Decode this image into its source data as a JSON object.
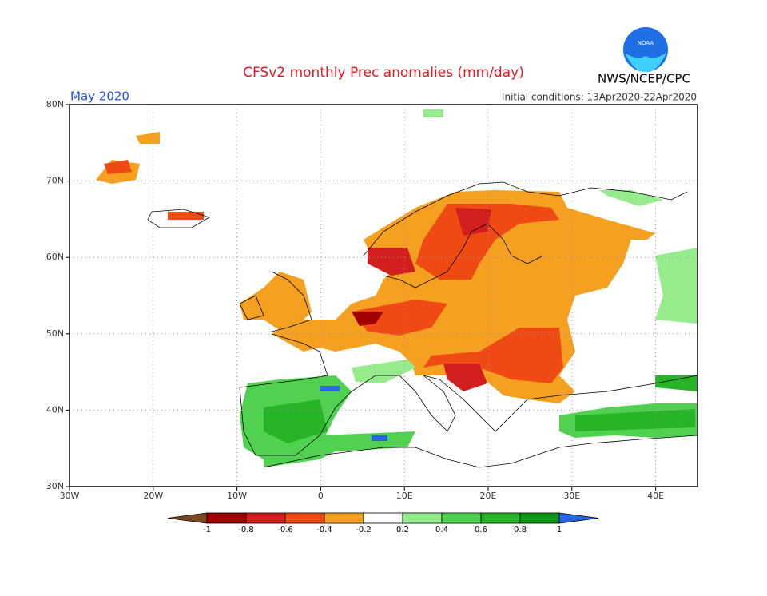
{
  "header": {
    "title": "CFSv2 monthly Prec anomalies (mm/day)",
    "month": "May 2020",
    "agency": "NWS/NCEP/CPC",
    "initial_conditions": "Initial conditions: 13Apr2020-22Apr2020",
    "logo": "NOAA"
  },
  "map": {
    "xlim": [
      -30,
      45
    ],
    "ylim": [
      30,
      80
    ],
    "xticks": [
      {
        "value": -30,
        "label": "30W"
      },
      {
        "value": -20,
        "label": "20W"
      },
      {
        "value": -10,
        "label": "10W"
      },
      0,
      {
        "value": 10,
        "label": "10E"
      },
      {
        "value": 20,
        "label": "20E"
      },
      {
        "value": 30,
        "label": "30E"
      },
      {
        "value": 40,
        "label": "40E"
      }
    ],
    "yticks": [
      {
        "value": 30,
        "label": "30N"
      },
      {
        "value": 40,
        "label": "40N"
      },
      {
        "value": 50,
        "label": "50N"
      },
      {
        "value": 60,
        "label": "60N"
      },
      {
        "value": 70,
        "label": "70N"
      },
      {
        "value": 80,
        "label": "80N"
      }
    ]
  },
  "colorbar": {
    "ticks": [
      -1,
      -0.8,
      -0.6,
      -0.4,
      -0.2,
      0.2,
      0.4,
      0.6,
      0.8,
      1
    ],
    "colors": [
      "#a00000",
      "#d21e1e",
      "#f04a14",
      "#f5a020",
      "#ffffff",
      "#96eb8c",
      "#50d250",
      "#28b428",
      "#129618"
    ],
    "low_color": "#7a4a22",
    "high_color": "#2864e6"
  }
}
